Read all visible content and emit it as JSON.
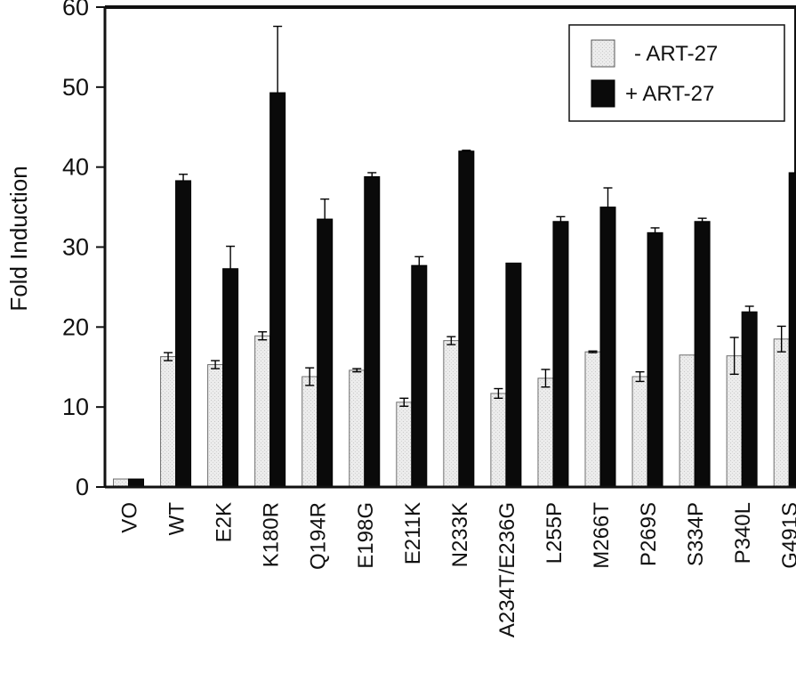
{
  "chart_data": {
    "type": "bar",
    "title": "",
    "xlabel": "",
    "ylabel": "Fold Induction",
    "ylim": [
      0,
      60
    ],
    "yticks": [
      0,
      10,
      20,
      30,
      40,
      50,
      60
    ],
    "grid": false,
    "legend_position": "top-right",
    "categories": [
      "VO",
      "WT",
      "E2K",
      "K180R",
      "Q194R",
      "E198G",
      "E211K",
      "N233K",
      "A234T/E236G",
      "L255P",
      "M266T",
      "P269S",
      "S334P",
      "P340L",
      "G491S"
    ],
    "series": [
      {
        "name": "- ART-27",
        "color": "#e6e6e6",
        "values": [
          1.0,
          16.3,
          15.3,
          18.9,
          13.8,
          14.6,
          10.6,
          18.3,
          11.7,
          13.6,
          16.9,
          13.8,
          16.5,
          16.4,
          18.5
        ],
        "errors": [
          0.0,
          0.5,
          0.5,
          0.5,
          1.1,
          0.2,
          0.5,
          0.5,
          0.6,
          1.1,
          0.1,
          0.6,
          0.0,
          2.3,
          1.6
        ]
      },
      {
        "name": "+ ART-27",
        "color": "#0a0a0a",
        "values": [
          1.0,
          38.3,
          27.3,
          49.3,
          33.5,
          38.8,
          27.7,
          42.0,
          28.0,
          33.2,
          35.0,
          31.8,
          33.2,
          21.9,
          39.3
        ],
        "errors": [
          0.0,
          0.8,
          2.8,
          8.3,
          2.5,
          0.5,
          1.1,
          0.1,
          0.0,
          0.6,
          2.4,
          0.6,
          0.4,
          0.7,
          0.0
        ]
      }
    ]
  }
}
